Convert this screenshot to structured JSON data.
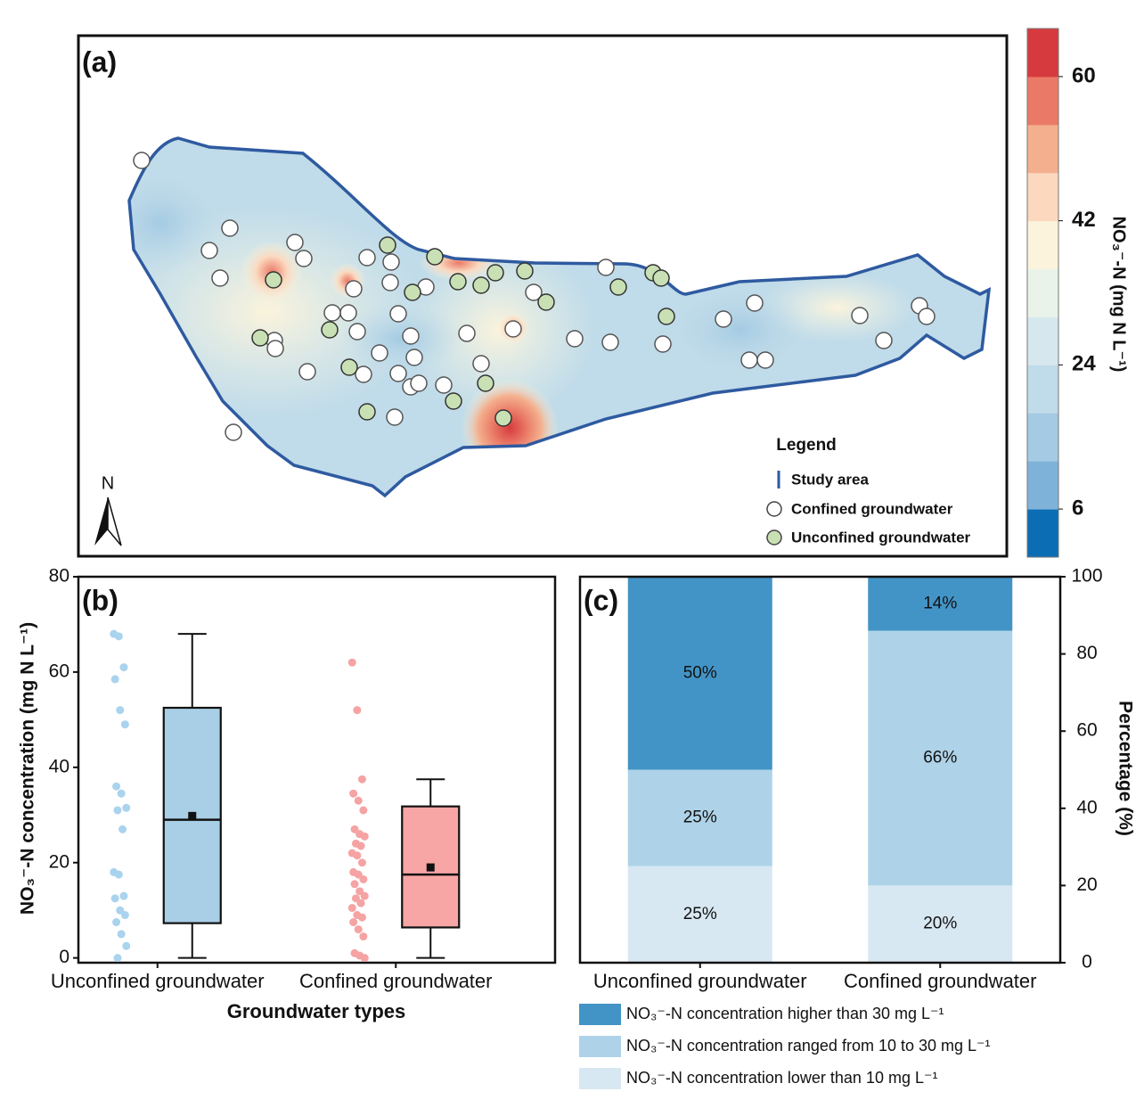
{
  "chart_data": [
    {
      "type": "map",
      "title": "(a)",
      "north": "N",
      "legend_title": "Legend",
      "legend": [
        "Study area",
        "Confined groundwater",
        "Unconfined groundwater"
      ],
      "colorbar": {
        "label": "NO₃⁻-N (mg N L⁻¹)",
        "lim": [
          0,
          66
        ],
        "ticks": [
          6,
          24,
          42,
          60
        ],
        "colors": [
          "#0b6eb4",
          "#7fb2d8",
          "#a4cbe3",
          "#c0dbe9",
          "#d6e8ee",
          "#eaf3e9",
          "#fbf3dc",
          "#fbd8be",
          "#f4b08e",
          "#ea7a67",
          "#d73a3e"
        ]
      }
    },
    {
      "type": "box",
      "title": "(b)",
      "ylabel": "NO₃⁻-N concentration (mg N L⁻¹)",
      "xlabel": "Groundwater types",
      "categories": [
        "Unconfined groundwater",
        "Confined groundwater"
      ],
      "ylim": [
        -1,
        80
      ],
      "yticks": [
        0,
        20,
        40,
        60,
        80
      ],
      "boxes": [
        {
          "min": 0,
          "q1": 7.3,
          "median": 29,
          "q3": 52.5,
          "max": 68,
          "mean": 29.8,
          "color": "#a8cfe6",
          "point_color": "#a9d3ee",
          "points": [
            68,
            67.5,
            61,
            58.5,
            52,
            49,
            36,
            34.5,
            31.5,
            31,
            27,
            18,
            17.5,
            13,
            12.5,
            10,
            9,
            7.5,
            5,
            2.5,
            0
          ]
        },
        {
          "min": 0,
          "q1": 6.4,
          "median": 17.5,
          "q3": 31.8,
          "max": 37.5,
          "mean": 19,
          "color": "#f7a5a5",
          "point_color": "#f5a3a3",
          "points": [
            62,
            52,
            37.5,
            34.5,
            33,
            31,
            27,
            26,
            25.5,
            24,
            23.5,
            22,
            21.5,
            20,
            18,
            17.5,
            16.5,
            15.5,
            14,
            13,
            12.5,
            11.5,
            10.5,
            9,
            8.5,
            7.5,
            6,
            4.5,
            1,
            0.5,
            0
          ]
        }
      ]
    },
    {
      "type": "stacked_bar",
      "title": "(c)",
      "ylabel": "Percentage (%)",
      "categories": [
        "Unconfined groundwater",
        "Confined groundwater"
      ],
      "ylim": [
        0,
        100
      ],
      "yticks": [
        0,
        20,
        40,
        60,
        80,
        100
      ],
      "series": [
        {
          "name": "NO₃⁻-N concentration higher than 30 mg L⁻¹",
          "color": "#4394c6",
          "values": [
            50,
            14
          ],
          "value_labels": [
            "50%",
            "14%"
          ]
        },
        {
          "name": "NO₃⁻-N concentration ranged from 10 to 30 mg L⁻¹",
          "color": "#aed3e8",
          "values": [
            25,
            66
          ],
          "value_labels": [
            "25%",
            "66%"
          ]
        },
        {
          "name": "NO₃⁻-N concentration lower than 10 mg L⁻¹",
          "color": "#d8e8f2",
          "values": [
            25,
            20
          ],
          "value_labels": [
            "25%",
            "20%"
          ]
        }
      ]
    }
  ]
}
